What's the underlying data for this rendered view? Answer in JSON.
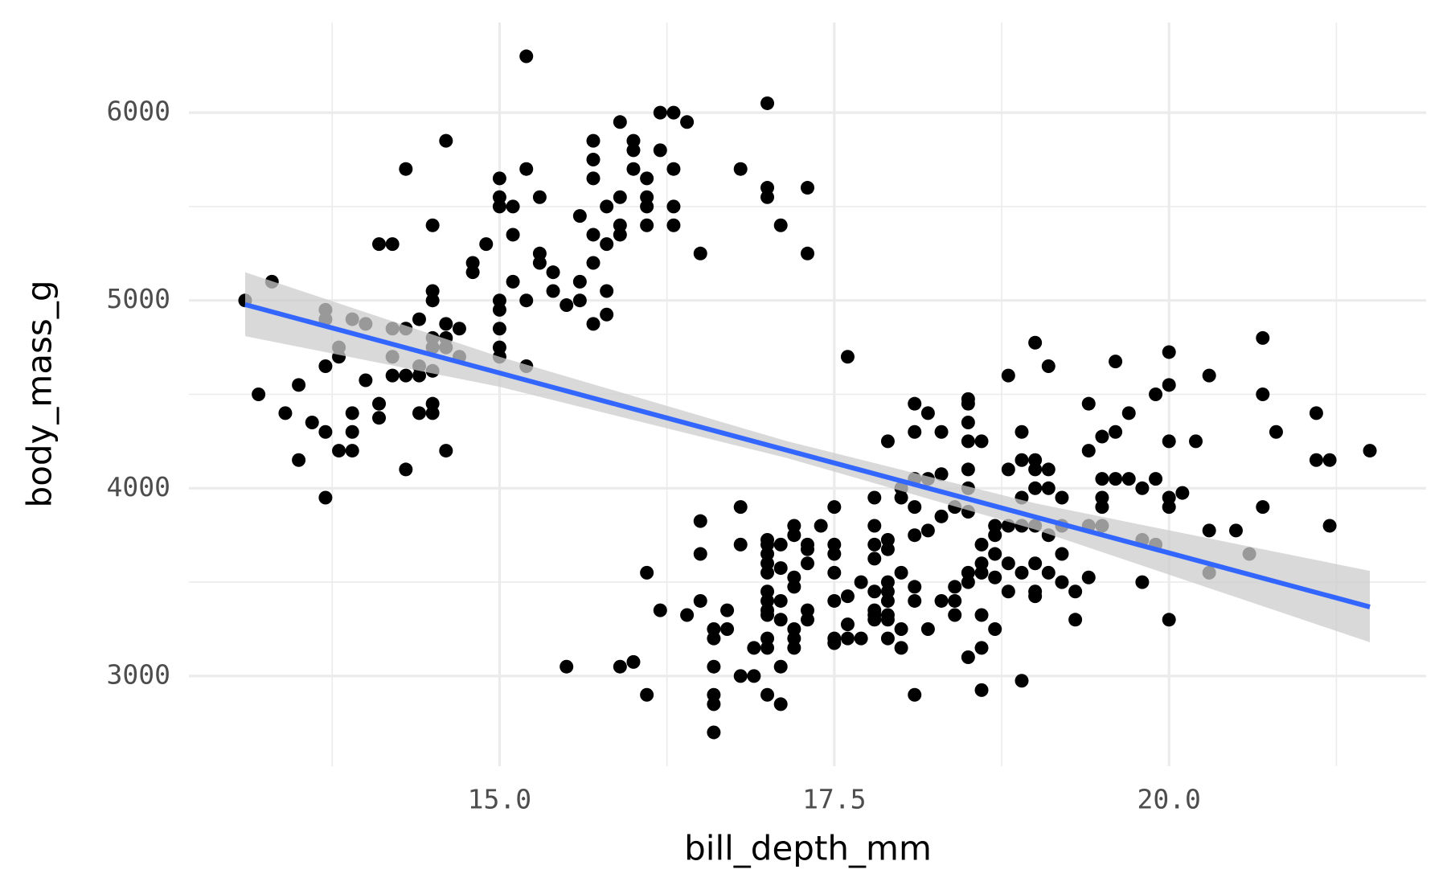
{
  "chart_data": {
    "type": "scatter",
    "x_label": "bill_depth_mm",
    "y_label": "body_mass_g",
    "color": "#000000",
    "x": [
      13.1,
      13.2,
      13.3,
      13.4,
      13.5,
      13.5,
      13.6,
      13.7,
      13.7,
      13.7,
      13.7,
      13.7,
      13.8,
      13.8,
      13.8,
      13.9,
      13.9,
      13.9,
      13.9,
      14.0,
      14.0,
      14.1,
      14.1,
      14.1,
      14.2,
      14.2,
      14.2,
      14.2,
      14.3,
      14.3,
      14.3,
      14.3,
      14.4,
      14.4,
      14.4,
      14.4,
      14.5,
      14.5,
      14.5,
      14.5,
      14.5,
      14.5,
      14.5,
      14.5,
      14.6,
      14.6,
      14.6,
      14.6,
      14.6,
      14.7,
      14.7,
      14.8,
      14.8,
      14.9,
      15.0,
      15.0,
      15.0,
      15.0,
      15.0,
      15.0,
      15.0,
      15.0,
      15.1,
      15.1,
      15.1,
      15.2,
      15.2,
      15.2,
      15.2,
      15.3,
      15.3,
      15.3,
      15.4,
      15.4,
      15.5,
      15.5,
      15.6,
      15.6,
      15.6,
      15.7,
      15.7,
      15.7,
      15.7,
      15.7,
      15.7,
      15.8,
      15.8,
      15.8,
      15.8,
      15.9,
      15.9,
      15.9,
      15.9,
      15.9,
      16.0,
      16.0,
      16.0,
      16.0,
      16.1,
      16.1,
      16.1,
      16.1,
      16.1,
      16.1,
      16.2,
      16.2,
      16.2,
      16.3,
      16.3,
      16.3,
      16.3,
      16.4,
      16.4,
      16.5,
      16.5,
      16.5,
      16.5,
      16.6,
      16.6,
      16.6,
      16.6,
      16.6,
      16.6,
      16.7,
      16.7,
      16.8,
      16.8,
      16.8,
      16.8,
      16.9,
      16.9,
      17.0,
      17.0,
      17.0,
      17.0,
      17.0,
      17.0,
      17.0,
      17.0,
      17.0,
      17.0,
      17.0,
      17.0,
      17.0,
      17.0,
      17.0,
      17.1,
      17.1,
      17.1,
      17.1,
      17.1,
      17.1,
      17.1,
      17.2,
      17.2,
      17.2,
      17.2,
      17.2,
      17.2,
      17.2,
      17.3,
      17.3,
      17.3,
      17.3,
      17.3,
      17.3,
      17.3,
      17.4,
      17.5,
      17.5,
      17.5,
      17.5,
      17.5,
      17.5,
      17.5,
      17.6,
      17.6,
      17.6,
      17.6,
      17.7,
      17.7,
      17.8,
      17.8,
      17.8,
      17.8,
      17.8,
      17.8,
      17.8,
      17.8,
      17.9,
      17.9,
      17.9,
      17.9,
      17.9,
      17.9,
      17.9,
      17.9,
      17.9,
      18.0,
      18.0,
      18.0,
      18.0,
      18.0,
      18.1,
      18.1,
      18.1,
      18.1,
      18.1,
      18.1,
      18.1,
      18.1,
      18.2,
      18.2,
      18.2,
      18.2,
      18.3,
      18.3,
      18.3,
      18.3,
      18.4,
      18.4,
      18.4,
      18.4,
      18.5,
      18.5,
      18.5,
      18.5,
      18.5,
      18.5,
      18.5,
      18.5,
      18.5,
      18.5,
      18.6,
      18.6,
      18.6,
      18.6,
      18.6,
      18.6,
      18.6,
      18.7,
      18.7,
      18.7,
      18.7,
      18.7,
      18.8,
      18.8,
      18.8,
      18.8,
      18.8,
      18.9,
      18.9,
      18.9,
      18.9,
      18.9,
      18.9,
      19.0,
      19.0,
      19.0,
      19.0,
      19.0,
      19.0,
      19.0,
      19.0,
      19.1,
      19.1,
      19.1,
      19.1,
      19.1,
      19.2,
      19.2,
      19.2,
      19.2,
      19.3,
      19.3,
      19.4,
      19.4,
      19.4,
      19.4,
      19.5,
      19.5,
      19.5,
      19.5,
      19.5,
      19.6,
      19.6,
      19.6,
      19.7,
      19.7,
      19.8,
      19.8,
      19.8,
      19.9,
      19.9,
      19.9,
      20.0,
      20.0,
      20.0,
      20.0,
      20.0,
      20.0,
      20.1,
      20.2,
      20.3,
      20.3,
      20.3,
      20.5,
      20.6,
      20.7,
      20.7,
      20.7,
      20.8,
      21.1,
      21.1,
      21.2,
      21.2,
      21.5
    ],
    "values": [
      5000,
      4500,
      5100,
      4400,
      4550,
      4150,
      4350,
      4950,
      4900,
      4650,
      4300,
      3950,
      4750,
      4700,
      4200,
      4900,
      4400,
      4300,
      4200,
      4875,
      4575,
      5300,
      4450,
      4375,
      5300,
      4850,
      4700,
      4600,
      5700,
      4850,
      4600,
      4100,
      4900,
      4650,
      4600,
      4400,
      5400,
      5050,
      5000,
      4800,
      4750,
      4625,
      4450,
      4400,
      5850,
      4875,
      4800,
      4750,
      4200,
      4850,
      4700,
      5200,
      5150,
      5300,
      5650,
      5550,
      5500,
      5000,
      4950,
      4850,
      4750,
      4700,
      5500,
      5350,
      5100,
      6300,
      5700,
      5000,
      4650,
      5550,
      5250,
      5200,
      5150,
      5050,
      4975,
      3050,
      5450,
      5100,
      5000,
      5850,
      5750,
      5650,
      5350,
      5200,
      4875,
      5500,
      5300,
      5050,
      4925,
      5950,
      5550,
      5400,
      5350,
      3050,
      5850,
      5800,
      5700,
      3075,
      5650,
      5550,
      5500,
      5400,
      3550,
      2900,
      6000,
      5800,
      3350,
      6000,
      5700,
      5500,
      5400,
      5950,
      3325,
      5250,
      3825,
      3650,
      3400,
      3250,
      3200,
      3050,
      2900,
      2850,
      2700,
      3350,
      3250,
      5700,
      3900,
      3700,
      3000,
      3150,
      3000,
      6050,
      5600,
      5550,
      3725,
      3700,
      3650,
      3600,
      3550,
      3450,
      3400,
      3350,
      3325,
      3200,
      3150,
      2900,
      5400,
      3700,
      3575,
      3400,
      3300,
      3050,
      2850,
      3800,
      3750,
      3525,
      3475,
      3250,
      3200,
      3150,
      5600,
      5250,
      3700,
      3675,
      3600,
      3350,
      3300,
      3800,
      3900,
      3700,
      3650,
      3550,
      3400,
      3200,
      3175,
      4700,
      3425,
      3275,
      3200,
      3500,
      3200,
      3950,
      3800,
      3700,
      3625,
      3450,
      3350,
      3325,
      3300,
      4250,
      3725,
      3675,
      3500,
      3450,
      3400,
      3325,
      3300,
      3200,
      4000,
      3950,
      3550,
      3250,
      3150,
      4450,
      4300,
      4050,
      3900,
      3750,
      3475,
      3400,
      2900,
      4400,
      4050,
      3775,
      3250,
      4300,
      4075,
      3850,
      3400,
      3900,
      3475,
      3325,
      3400,
      4475,
      4450,
      4350,
      4250,
      4100,
      4000,
      3875,
      3550,
      3500,
      3100,
      4250,
      3700,
      3600,
      3550,
      3325,
      3150,
      2925,
      3800,
      3750,
      3650,
      3525,
      3250,
      4600,
      4100,
      3800,
      3600,
      3450,
      4300,
      4150,
      3950,
      3800,
      3550,
      2975,
      4775,
      4150,
      4100,
      4000,
      3800,
      3600,
      3450,
      3425,
      4650,
      4100,
      4000,
      3750,
      3550,
      3950,
      3800,
      3650,
      3500,
      3450,
      3300,
      4450,
      4200,
      3800,
      3525,
      4275,
      4050,
      3950,
      3900,
      3800,
      4675,
      4300,
      4050,
      4400,
      4050,
      4000,
      3725,
      3500,
      4500,
      4050,
      3700,
      4725,
      4550,
      4250,
      3950,
      3900,
      3300,
      3975,
      4250,
      4600,
      3775,
      3550,
      3775,
      3650,
      4800,
      4500,
      3900,
      4300,
      4400,
      4150,
      4150,
      3800,
      4200
    ],
    "xlim": [
      12.68,
      21.92
    ],
    "xticks": [
      {
        "value": 15,
        "label": "15.0"
      },
      {
        "value": 17.5,
        "label": "17.5"
      },
      {
        "value": 20,
        "label": "20.0"
      }
    ],
    "ylim": [
      2520,
      6480
    ],
    "yticks": [
      3000,
      4000,
      5000,
      6000
    ],
    "grid": true,
    "fit": {
      "color": "#3366ff",
      "x": [
        13.1,
        21.5
      ],
      "y": [
        4978,
        3368
      ]
    },
    "band": {
      "color": "#cccccc",
      "x": [
        13.1,
        15,
        17.15,
        19,
        21.5
      ],
      "lower": [
        4810,
        4540,
        4160,
        3780,
        3180
      ],
      "upper": [
        5150,
        4700,
        4250,
        3920,
        3560
      ]
    }
  }
}
